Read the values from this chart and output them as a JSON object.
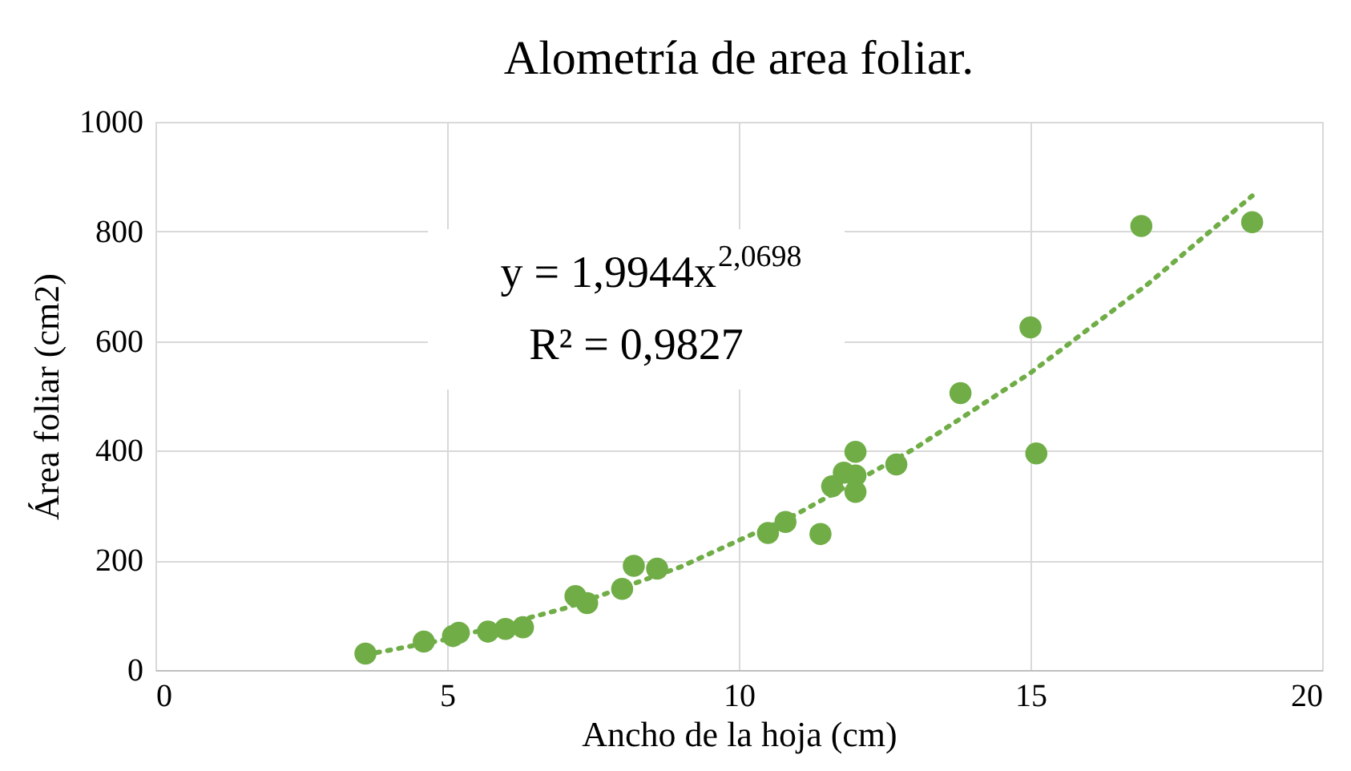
{
  "chart_data": {
    "type": "scatter",
    "title": "Alometría de area foliar.",
    "xlabel": "Ancho de la hoja (cm)",
    "ylabel": "Área foliar (cm2)",
    "xlim": [
      0,
      20
    ],
    "xticks": [
      0,
      5,
      10,
      15,
      20
    ],
    "ylim": [
      0,
      1000
    ],
    "yticks": [
      0,
      200,
      400,
      600,
      800,
      1000
    ],
    "grid": true,
    "series": [
      {
        "color": "#70ad47",
        "marker": "circle",
        "x": [
          3.6,
          4.6,
          5.1,
          5.2,
          5.7,
          6.0,
          6.3,
          7.2,
          7.4,
          8.0,
          8.2,
          8.6,
          10.5,
          10.8,
          11.4,
          11.6,
          11.8,
          12.0,
          12.0,
          12.0,
          12.7,
          13.8,
          15.0,
          15.1,
          16.9,
          18.8
        ],
        "values": [
          30,
          52,
          62,
          68,
          70,
          75,
          78,
          135,
          122,
          148,
          190,
          185,
          250,
          270,
          248,
          335,
          360,
          398,
          355,
          325,
          375,
          505,
          625,
          395,
          810,
          817
        ]
      },
      {
        "type": "line",
        "color": "#70ad47",
        "line_style": "dotted",
        "marker": "none",
        "x": [
          3.6,
          5,
          7,
          9,
          11,
          13,
          15,
          17,
          18.8
        ],
        "values": [
          28,
          56,
          112,
          188,
          285,
          403,
          542,
          703,
          865
        ]
      }
    ],
    "annotations": [
      "y = 1,9944x$^{2,0698}$",
      "R² = 0,9827"
    ]
  }
}
